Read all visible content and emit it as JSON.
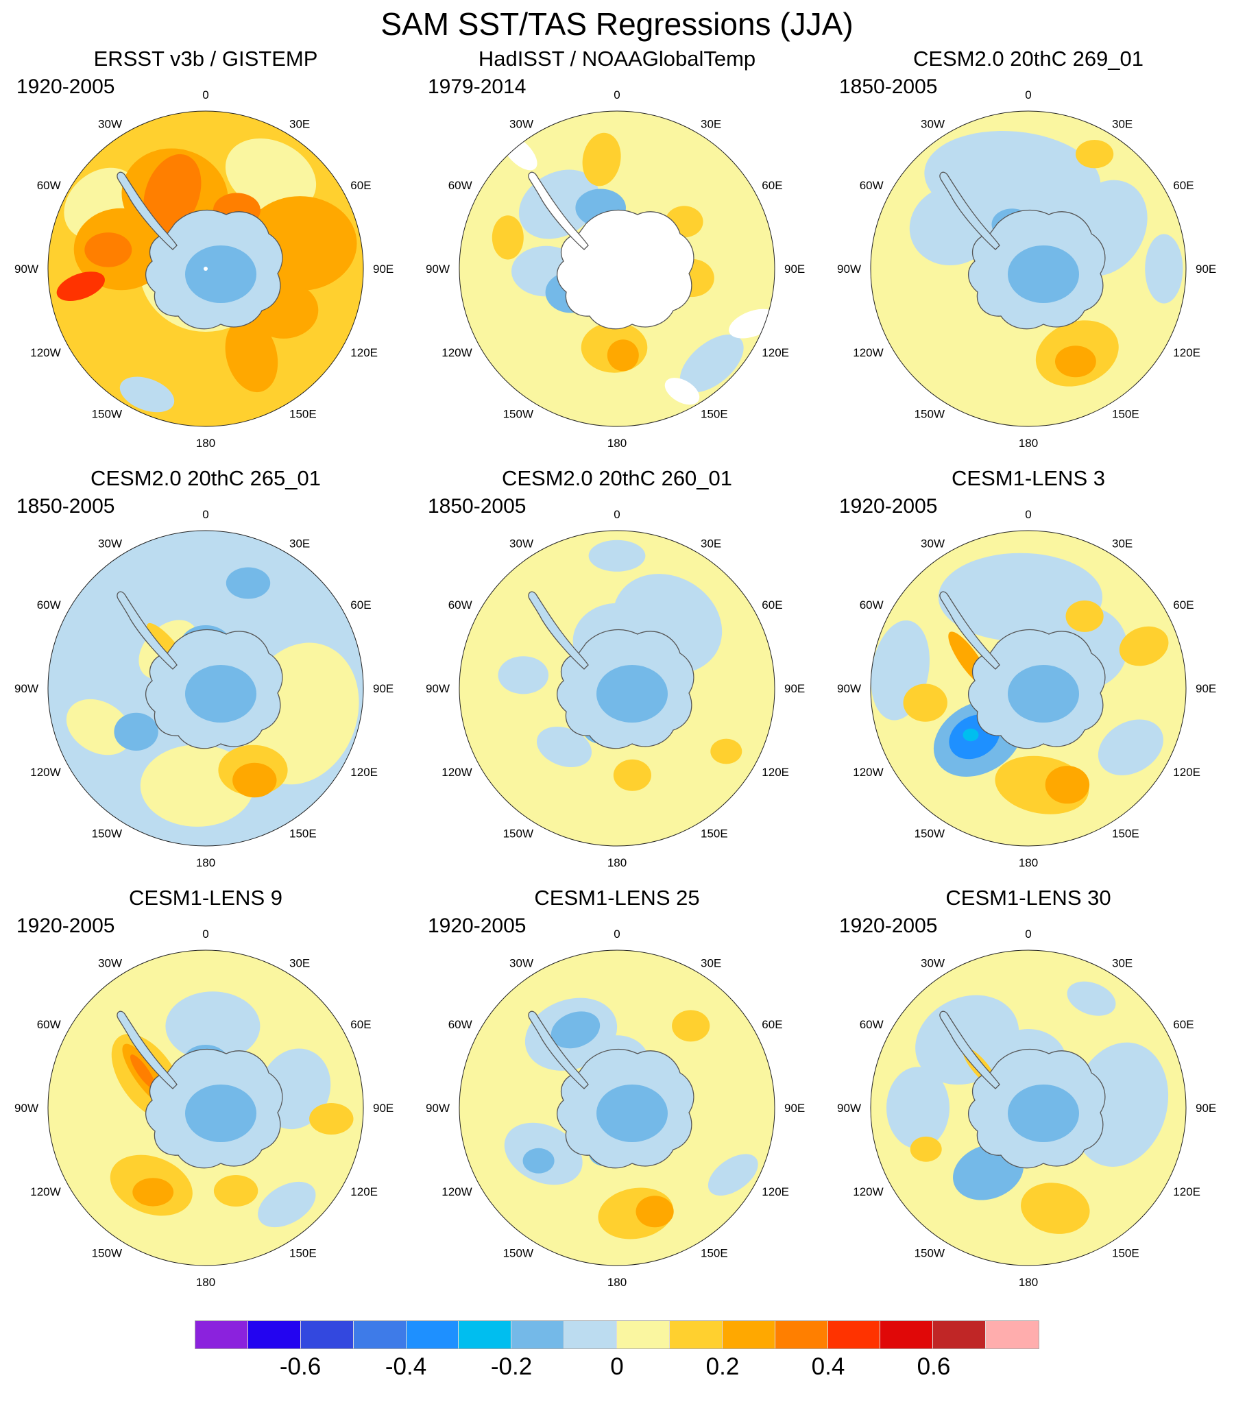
{
  "title": "SAM SST/TAS Regressions (JJA)",
  "lon_labels": [
    "0",
    "30E",
    "60E",
    "90E",
    "120E",
    "150E",
    "180",
    "150W",
    "120W",
    "90W",
    "60W",
    "30W"
  ],
  "chart_data": {
    "type": "contour-map-grid",
    "title": "SAM SST/TAS Regressions (JJA)",
    "projection": "south-polar-stereographic",
    "grid": {
      "rows": 3,
      "cols": 3
    },
    "colorbar": {
      "min": -0.8,
      "max": 0.8,
      "interval": 0.1,
      "colors": [
        "#8B22DD",
        "#2304F0",
        "#3348DF",
        "#3E7BE8",
        "#1E90FF",
        "#00BEEF",
        "#74B9E8",
        "#BCDCF0",
        "#FAF6A0",
        "#FFD02F",
        "#FFA800",
        "#FF7F00",
        "#FF3300",
        "#E00808",
        "#C02626",
        "#FFADAD"
      ],
      "tick_labels": [
        "-0.6",
        "-0.4",
        "-0.2",
        "0",
        "0.2",
        "0.4",
        "0.6"
      ],
      "tick_values": [
        -0.6,
        -0.4,
        -0.2,
        0,
        0.2,
        0.4,
        0.6
      ]
    },
    "panels": [
      {
        "title": "ERSST v3b / GISTEMP",
        "period": "1920-2005",
        "base_v": 0.15,
        "antarctica_v": -0.05,
        "antarctica_core_v": -0.15,
        "pole_dot": true,
        "blobs": [
          {
            "a": 35,
            "r": 0.72,
            "w": 0.3,
            "h": 0.22,
            "o": 25,
            "v": 0.05
          },
          {
            "a": 302,
            "r": 0.78,
            "w": 0.26,
            "h": 0.2,
            "o": -40,
            "v": 0.05
          },
          {
            "a": 0,
            "r": 0,
            "w": 0.42,
            "h": 0.4,
            "o": 0,
            "v": 0.05
          },
          {
            "a": 337,
            "r": 0.5,
            "w": 0.34,
            "h": 0.3,
            "o": 15,
            "v": 0.25
          },
          {
            "a": 336,
            "r": 0.52,
            "w": 0.17,
            "h": 0.26,
            "o": 20,
            "v": 0.35
          },
          {
            "a": 283,
            "r": 0.55,
            "w": 0.3,
            "h": 0.26,
            "o": 0,
            "v": 0.25
          },
          {
            "a": 281,
            "r": 0.63,
            "w": 0.15,
            "h": 0.11,
            "o": 0,
            "v": 0.35
          },
          {
            "a": 262,
            "r": 0.8,
            "w": 0.16,
            "h": 0.08,
            "o": -20,
            "v": 0.45
          },
          {
            "a": 75,
            "r": 0.62,
            "w": 0.36,
            "h": 0.3,
            "o": 0,
            "v": 0.25
          },
          {
            "a": 118,
            "r": 0.56,
            "w": 0.22,
            "h": 0.18,
            "o": 0,
            "v": 0.25
          },
          {
            "a": 152,
            "r": 0.62,
            "w": 0.16,
            "h": 0.24,
            "o": -15,
            "v": 0.25
          },
          {
            "a": 28,
            "r": 0.42,
            "w": 0.15,
            "h": 0.11,
            "o": 0,
            "v": 0.35
          },
          {
            "a": 205,
            "r": 0.88,
            "w": 0.18,
            "h": 0.1,
            "o": 20,
            "v": -0.05
          }
        ]
      },
      {
        "title": "HadISST / NOAAGlobalTemp",
        "period": "1979-2014",
        "base_v": 0.05,
        "antarctica_v": null,
        "antarctica_core_v": null,
        "pole_dot": false,
        "blobs": [
          {
            "a": 318,
            "r": 0.55,
            "w": 0.27,
            "h": 0.2,
            "o": -30,
            "v": -0.05
          },
          {
            "a": 345,
            "r": 0.4,
            "w": 0.16,
            "h": 0.12,
            "o": 0,
            "v": -0.15
          },
          {
            "a": 268,
            "r": 0.45,
            "w": 0.22,
            "h": 0.16,
            "o": 0,
            "v": -0.05
          },
          {
            "a": 243,
            "r": 0.33,
            "w": 0.16,
            "h": 0.13,
            "o": 0,
            "v": -0.15
          },
          {
            "a": 352,
            "r": 0.7,
            "w": 0.12,
            "h": 0.17,
            "o": 10,
            "v": 0.15
          },
          {
            "a": 286,
            "r": 0.72,
            "w": 0.1,
            "h": 0.14,
            "o": 0,
            "v": 0.15
          },
          {
            "a": 182,
            "r": 0.5,
            "w": 0.21,
            "h": 0.16,
            "o": 0,
            "v": 0.15
          },
          {
            "a": 176,
            "r": 0.55,
            "w": 0.1,
            "h": 0.1,
            "o": 0,
            "v": 0.25
          },
          {
            "a": 97,
            "r": 0.48,
            "w": 0.14,
            "h": 0.12,
            "o": 0,
            "v": 0.15
          },
          {
            "a": 55,
            "r": 0.52,
            "w": 0.12,
            "h": 0.1,
            "o": 0,
            "v": 0.15
          },
          {
            "a": 135,
            "r": 0.85,
            "w": 0.24,
            "h": 0.13,
            "o": -40,
            "v": -0.05
          },
          {
            "a": 112,
            "r": 0.93,
            "w": 0.16,
            "h": 0.08,
            "o": -20,
            "v": null
          },
          {
            "a": 320,
            "r": 0.96,
            "w": 0.14,
            "h": 0.07,
            "o": 45,
            "v": null
          },
          {
            "a": 152,
            "r": 0.88,
            "w": 0.12,
            "h": 0.07,
            "o": 30,
            "v": null
          }
        ]
      },
      {
        "title": "CESM2.0 20thC 269_01",
        "period": "1850-2005",
        "base_v": 0.05,
        "antarctica_v": -0.05,
        "antarctica_core_v": -0.15,
        "pole_dot": false,
        "blobs": [
          {
            "a": 350,
            "r": 0.58,
            "w": 0.56,
            "h": 0.3,
            "o": 5,
            "v": -0.05
          },
          {
            "a": 62,
            "r": 0.55,
            "w": 0.25,
            "h": 0.32,
            "o": 30,
            "v": -0.05
          },
          {
            "a": 300,
            "r": 0.55,
            "w": 0.28,
            "h": 0.25,
            "o": -20,
            "v": -0.05
          },
          {
            "a": 90,
            "r": 0.86,
            "w": 0.12,
            "h": 0.22,
            "o": 0,
            "v": -0.05
          },
          {
            "a": 0,
            "r": 0.3,
            "w": 0.32,
            "h": 0.28,
            "o": 0,
            "v": -0.05
          },
          {
            "a": 340,
            "r": 0.3,
            "w": 0.13,
            "h": 0.1,
            "o": 0,
            "v": -0.15
          },
          {
            "a": 30,
            "r": 0.84,
            "w": 0.12,
            "h": 0.09,
            "o": 0,
            "v": 0.15
          },
          {
            "a": 150,
            "r": 0.62,
            "w": 0.27,
            "h": 0.2,
            "o": -20,
            "v": 0.15
          },
          {
            "a": 153,
            "r": 0.66,
            "w": 0.13,
            "h": 0.1,
            "o": 0,
            "v": 0.25
          }
        ]
      },
      {
        "title": "CESM2.0 20thC 265_01",
        "period": "1850-2005",
        "base_v": -0.05,
        "antarctica_v": -0.05,
        "antarctica_core_v": -0.15,
        "pole_dot": false,
        "blobs": [
          {
            "a": 105,
            "r": 0.62,
            "w": 0.36,
            "h": 0.46,
            "o": 20,
            "v": 0.05
          },
          {
            "a": 185,
            "r": 0.62,
            "w": 0.36,
            "h": 0.26,
            "o": 0,
            "v": 0.05
          },
          {
            "a": 250,
            "r": 0.72,
            "w": 0.22,
            "h": 0.16,
            "o": 30,
            "v": 0.05
          },
          {
            "a": 316,
            "r": 0.34,
            "w": 0.22,
            "h": 0.15,
            "o": -45,
            "v": 0.05
          },
          {
            "a": 318,
            "r": 0.38,
            "w": 0.05,
            "h": 0.17,
            "o": -42,
            "v": 0.15
          },
          {
            "a": 150,
            "r": 0.6,
            "w": 0.22,
            "h": 0.16,
            "o": 0,
            "v": 0.15
          },
          {
            "a": 152,
            "r": 0.66,
            "w": 0.14,
            "h": 0.11,
            "o": 0,
            "v": 0.25
          },
          {
            "a": 238,
            "r": 0.52,
            "w": 0.14,
            "h": 0.12,
            "o": 0,
            "v": -0.15
          },
          {
            "a": 22,
            "r": 0.72,
            "w": 0.14,
            "h": 0.1,
            "o": 0,
            "v": -0.15
          },
          {
            "a": 0,
            "r": 0.28,
            "w": 0.16,
            "h": 0.12,
            "o": 0,
            "v": -0.15
          }
        ]
      },
      {
        "title": "CESM2.0 20thC 260_01",
        "period": "1850-2005",
        "base_v": 0.05,
        "antarctica_v": -0.05,
        "antarctica_core_v": -0.15,
        "pole_dot": false,
        "blobs": [
          {
            "a": 38,
            "r": 0.52,
            "w": 0.36,
            "h": 0.3,
            "o": 30,
            "v": -0.05
          },
          {
            "a": 0,
            "r": 0.84,
            "w": 0.18,
            "h": 0.1,
            "o": 0,
            "v": -0.05
          },
          {
            "a": 278,
            "r": 0.6,
            "w": 0.16,
            "h": 0.12,
            "o": 0,
            "v": -0.05
          },
          {
            "a": 222,
            "r": 0.5,
            "w": 0.18,
            "h": 0.12,
            "o": 20,
            "v": -0.05
          },
          {
            "a": 0,
            "r": 0.3,
            "w": 0.28,
            "h": 0.24,
            "o": 0,
            "v": -0.05
          },
          {
            "a": 200,
            "r": 0.28,
            "w": 0.12,
            "h": 0.09,
            "o": 0,
            "v": -0.15
          },
          {
            "a": 170,
            "r": 0.56,
            "w": 0.12,
            "h": 0.1,
            "o": 0,
            "v": 0.15
          },
          {
            "a": 120,
            "r": 0.8,
            "w": 0.1,
            "h": 0.08,
            "o": 0,
            "v": 0.15
          }
        ]
      },
      {
        "title": "CESM1-LENS 3",
        "period": "1920-2005",
        "base_v": 0.05,
        "antarctica_v": -0.05,
        "antarctica_core_v": -0.15,
        "pole_dot": false,
        "blobs": [
          {
            "a": 355,
            "r": 0.58,
            "w": 0.52,
            "h": 0.28,
            "o": 0,
            "v": -0.05
          },
          {
            "a": 278,
            "r": 0.82,
            "w": 0.18,
            "h": 0.32,
            "o": 10,
            "v": -0.05
          },
          {
            "a": 55,
            "r": 0.45,
            "w": 0.26,
            "h": 0.26,
            "o": 0,
            "v": -0.05
          },
          {
            "a": 120,
            "r": 0.75,
            "w": 0.22,
            "h": 0.16,
            "o": -30,
            "v": -0.05
          },
          {
            "a": 225,
            "r": 0.45,
            "w": 0.3,
            "h": 0.22,
            "o": -30,
            "v": -0.15
          },
          {
            "a": 228,
            "r": 0.46,
            "w": 0.17,
            "h": 0.13,
            "o": -30,
            "v": -0.35
          },
          {
            "a": 231,
            "r": 0.47,
            "w": 0.05,
            "h": 0.04,
            "o": 0,
            "v": -0.25
          },
          {
            "a": 296,
            "r": 0.42,
            "w": 0.06,
            "h": 0.21,
            "o": -35,
            "v": 0.25
          },
          {
            "a": 262,
            "r": 0.66,
            "w": 0.14,
            "h": 0.12,
            "o": 0,
            "v": 0.15
          },
          {
            "a": 172,
            "r": 0.62,
            "w": 0.3,
            "h": 0.18,
            "o": 10,
            "v": 0.15
          },
          {
            "a": 158,
            "r": 0.66,
            "w": 0.14,
            "h": 0.12,
            "o": 0,
            "v": 0.25
          },
          {
            "a": 70,
            "r": 0.78,
            "w": 0.16,
            "h": 0.12,
            "o": -20,
            "v": 0.15
          },
          {
            "a": 38,
            "r": 0.58,
            "w": 0.12,
            "h": 0.1,
            "o": 0,
            "v": 0.15
          }
        ]
      },
      {
        "title": "CESM1-LENS 9",
        "period": "1920-2005",
        "base_v": 0.05,
        "antarctica_v": -0.05,
        "antarctica_core_v": -0.15,
        "pole_dot": false,
        "blobs": [
          {
            "a": 5,
            "r": 0.52,
            "w": 0.3,
            "h": 0.22,
            "o": 0,
            "v": -0.05
          },
          {
            "a": 78,
            "r": 0.58,
            "w": 0.22,
            "h": 0.26,
            "o": 20,
            "v": -0.05
          },
          {
            "a": 140,
            "r": 0.8,
            "w": 0.2,
            "h": 0.12,
            "o": -30,
            "v": -0.05
          },
          {
            "a": 298,
            "r": 0.42,
            "w": 0.17,
            "h": 0.31,
            "o": -35,
            "v": 0.15
          },
          {
            "a": 299,
            "r": 0.44,
            "w": 0.07,
            "h": 0.23,
            "o": -35,
            "v": 0.25
          },
          {
            "a": 300,
            "r": 0.46,
            "w": 0.035,
            "h": 0.13,
            "o": -35,
            "v": 0.35
          },
          {
            "a": 215,
            "r": 0.6,
            "w": 0.27,
            "h": 0.18,
            "o": 20,
            "v": 0.15
          },
          {
            "a": 212,
            "r": 0.63,
            "w": 0.13,
            "h": 0.09,
            "o": 0,
            "v": 0.25
          },
          {
            "a": 95,
            "r": 0.8,
            "w": 0.14,
            "h": 0.1,
            "o": 0,
            "v": 0.15
          },
          {
            "a": 160,
            "r": 0.56,
            "w": 0.14,
            "h": 0.1,
            "o": 0,
            "v": 0.15
          },
          {
            "a": 0,
            "r": 0.3,
            "w": 0.14,
            "h": 0.1,
            "o": 0,
            "v": -0.15
          }
        ]
      },
      {
        "title": "CESM1-LENS 25",
        "period": "1920-2005",
        "base_v": 0.05,
        "antarctica_v": -0.05,
        "antarctica_core_v": -0.15,
        "pole_dot": false,
        "blobs": [
          {
            "a": 328,
            "r": 0.55,
            "w": 0.3,
            "h": 0.22,
            "o": -20,
            "v": -0.05
          },
          {
            "a": 332,
            "r": 0.56,
            "w": 0.16,
            "h": 0.11,
            "o": -20,
            "v": -0.15
          },
          {
            "a": 238,
            "r": 0.55,
            "w": 0.26,
            "h": 0.18,
            "o": 25,
            "v": -0.05
          },
          {
            "a": 236,
            "r": 0.6,
            "w": 0.1,
            "h": 0.08,
            "o": 0,
            "v": -0.15
          },
          {
            "a": 120,
            "r": 0.85,
            "w": 0.18,
            "h": 0.1,
            "o": -35,
            "v": -0.05
          },
          {
            "a": 55,
            "r": 0.32,
            "w": 0.14,
            "h": 0.12,
            "o": 0,
            "v": 0.15
          },
          {
            "a": 50,
            "r": 0.36,
            "w": 0.07,
            "h": 0.06,
            "o": 0,
            "v": 0.25
          },
          {
            "a": 42,
            "r": 0.7,
            "w": 0.12,
            "h": 0.1,
            "o": 0,
            "v": 0.15
          },
          {
            "a": 170,
            "r": 0.68,
            "w": 0.24,
            "h": 0.16,
            "o": -10,
            "v": 0.15
          },
          {
            "a": 160,
            "r": 0.7,
            "w": 0.12,
            "h": 0.1,
            "o": 0,
            "v": 0.25
          },
          {
            "a": 0,
            "r": 0.3,
            "w": 0.2,
            "h": 0.16,
            "o": 0,
            "v": -0.05
          },
          {
            "a": 195,
            "r": 0.3,
            "w": 0.1,
            "h": 0.08,
            "o": 0,
            "v": -0.15
          }
        ]
      },
      {
        "title": "CESM1-LENS 30",
        "period": "1920-2005",
        "base_v": 0.05,
        "antarctica_v": -0.05,
        "antarctica_core_v": -0.15,
        "pole_dot": false,
        "blobs": [
          {
            "a": 318,
            "r": 0.58,
            "w": 0.34,
            "h": 0.27,
            "o": -25,
            "v": -0.05
          },
          {
            "a": 270,
            "r": 0.7,
            "w": 0.2,
            "h": 0.26,
            "o": 0,
            "v": -0.05
          },
          {
            "a": 88,
            "r": 0.58,
            "w": 0.3,
            "h": 0.4,
            "o": 15,
            "v": -0.05
          },
          {
            "a": 30,
            "r": 0.8,
            "w": 0.16,
            "h": 0.1,
            "o": 20,
            "v": -0.05
          },
          {
            "a": 212,
            "r": 0.48,
            "w": 0.23,
            "h": 0.17,
            "o": -20,
            "v": -0.15
          },
          {
            "a": 165,
            "r": 0.66,
            "w": 0.22,
            "h": 0.16,
            "o": 10,
            "v": 0.15
          },
          {
            "a": 248,
            "r": 0.7,
            "w": 0.1,
            "h": 0.08,
            "o": 0,
            "v": 0.15
          },
          {
            "a": 310,
            "r": 0.4,
            "w": 0.05,
            "h": 0.16,
            "o": -40,
            "v": 0.15
          },
          {
            "a": 0,
            "r": 0.3,
            "w": 0.24,
            "h": 0.2,
            "o": 0,
            "v": -0.05
          }
        ]
      }
    ]
  }
}
